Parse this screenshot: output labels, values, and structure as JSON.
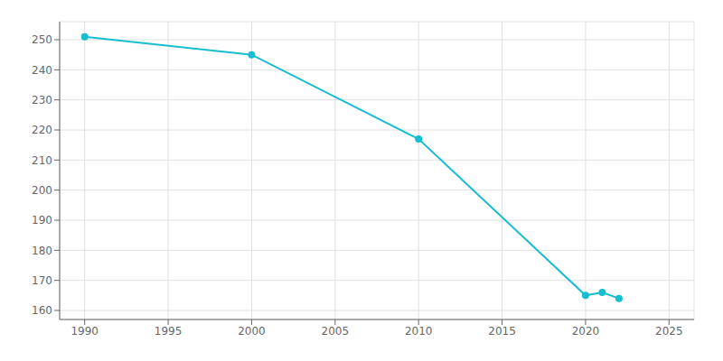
{
  "chart_data": {
    "type": "line",
    "x": [
      1990,
      2000,
      2010,
      2020,
      2021,
      2022
    ],
    "values": [
      251,
      245,
      217,
      165,
      166,
      164
    ],
    "color": "#17BECF",
    "marker": "circle",
    "xlim": [
      1988.5,
      2026.5
    ],
    "ylim": [
      157,
      256
    ],
    "xticks": [
      1990,
      1995,
      2000,
      2005,
      2010,
      2015,
      2020,
      2025
    ],
    "yticks": [
      160,
      170,
      180,
      190,
      200,
      210,
      220,
      230,
      240,
      250
    ],
    "grid": true
  }
}
